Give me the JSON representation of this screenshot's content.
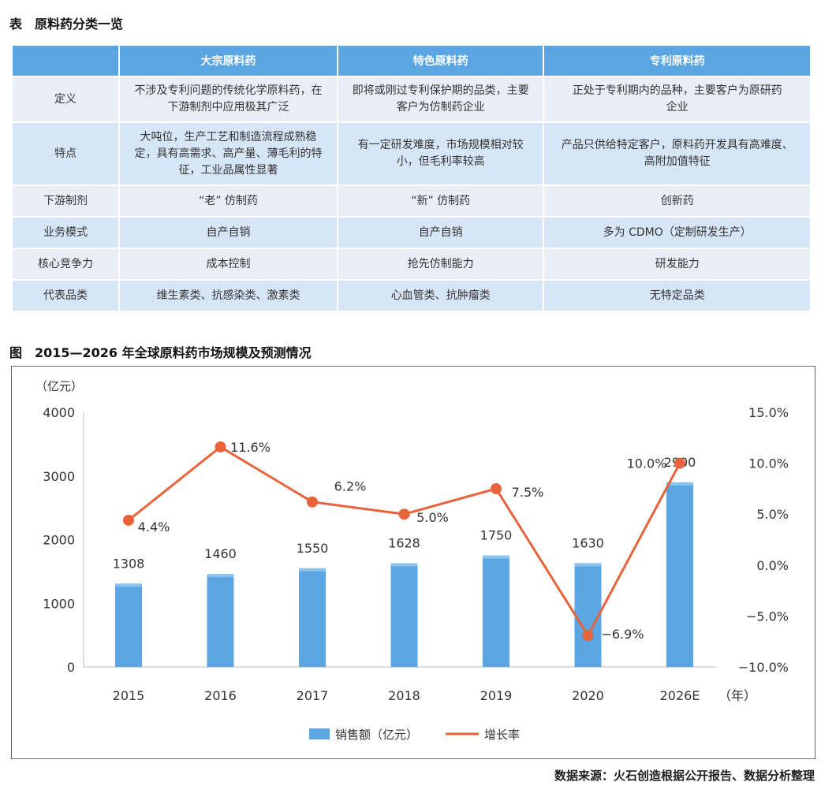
{
  "table_caption": "表　原料药分类一览",
  "table": {
    "headers": [
      "",
      "大宗原料药",
      "特色原料药",
      "专利原料药"
    ],
    "rows": [
      {
        "label": "定义",
        "cells": [
          [
            "不涉及专利问题的传统化学原料药，在",
            "下游制剂中应用极其广泛"
          ],
          [
            "即将或刚过专利保护期的品类，主要",
            "客户为仿制药企业"
          ],
          [
            "正处于专利期内的品种，主要客户为原研药",
            "企业"
          ]
        ]
      },
      {
        "label": "特点",
        "cells": [
          [
            "大吨位，生产工艺和制造流程成熟稳",
            "定，具有高需求、高产量、薄毛利的特",
            "征，工业品属性显著"
          ],
          [
            "有一定研发难度，市场规模相对较",
            "小，但毛利率较高"
          ],
          [
            "产品只供给特定客户，原料药开发具有高难度、",
            "高附加值特征"
          ]
        ]
      },
      {
        "label": "下游制剂",
        "cells": [
          [
            "“老” 仿制药"
          ],
          [
            "“新” 仿制药"
          ],
          [
            "创新药"
          ]
        ]
      },
      {
        "label": "业务模式",
        "cells": [
          [
            "自产自销"
          ],
          [
            "自产自销"
          ],
          [
            "多为 CDMO（定制研发生产）"
          ]
        ]
      },
      {
        "label": "核心竞争力",
        "cells": [
          [
            "成本控制"
          ],
          [
            "抢先仿制能力"
          ],
          [
            "研发能力"
          ]
        ]
      },
      {
        "label": "代表品类",
        "cells": [
          [
            "维生素类、抗感染类、激素类"
          ],
          [
            "心血管类、抗肿瘤类"
          ],
          [
            "无特定品类"
          ]
        ]
      }
    ]
  },
  "figure_caption": "图　2015—2026 年全球原料药市场规模及预测情况",
  "chart_data": {
    "type": "bar",
    "categories": [
      "2015",
      "2016",
      "2017",
      "2018",
      "2019",
      "2020",
      "2026E"
    ],
    "x_unit": "（年）",
    "y_unit": "（亿元）",
    "ylim": [
      0,
      4000
    ],
    "yticks": [
      "4000",
      "3000",
      "2000",
      "1000",
      "0"
    ],
    "y2lim": [
      -10,
      15
    ],
    "y2ticks": [
      "15.0%",
      "10.0%",
      "5.0%",
      "0.0%",
      "−5.0%",
      "−10.0%"
    ],
    "series": [
      {
        "name": "销售额（亿元）",
        "type": "bar",
        "color": "#5aa5e2",
        "values": [
          1308,
          1460,
          1550,
          1628,
          1750,
          1630,
          2900
        ],
        "labels": [
          "1308",
          "1460",
          "1550",
          "1628",
          "1750",
          "1630",
          "2900"
        ]
      },
      {
        "name": "增长率",
        "type": "line",
        "color": "#e8623a",
        "axis": "right",
        "values": [
          4.4,
          11.6,
          6.2,
          5.0,
          7.5,
          -6.9,
          10.0
        ],
        "labels": [
          "4.4%",
          "11.6%",
          "6.2%",
          "5.0%",
          "7.5%",
          "−6.9%",
          "10.0%"
        ]
      }
    ],
    "grid": false,
    "legend_position": "bottom"
  },
  "source_note": "数据来源：火石创造根据公开报告、数据分析整理"
}
